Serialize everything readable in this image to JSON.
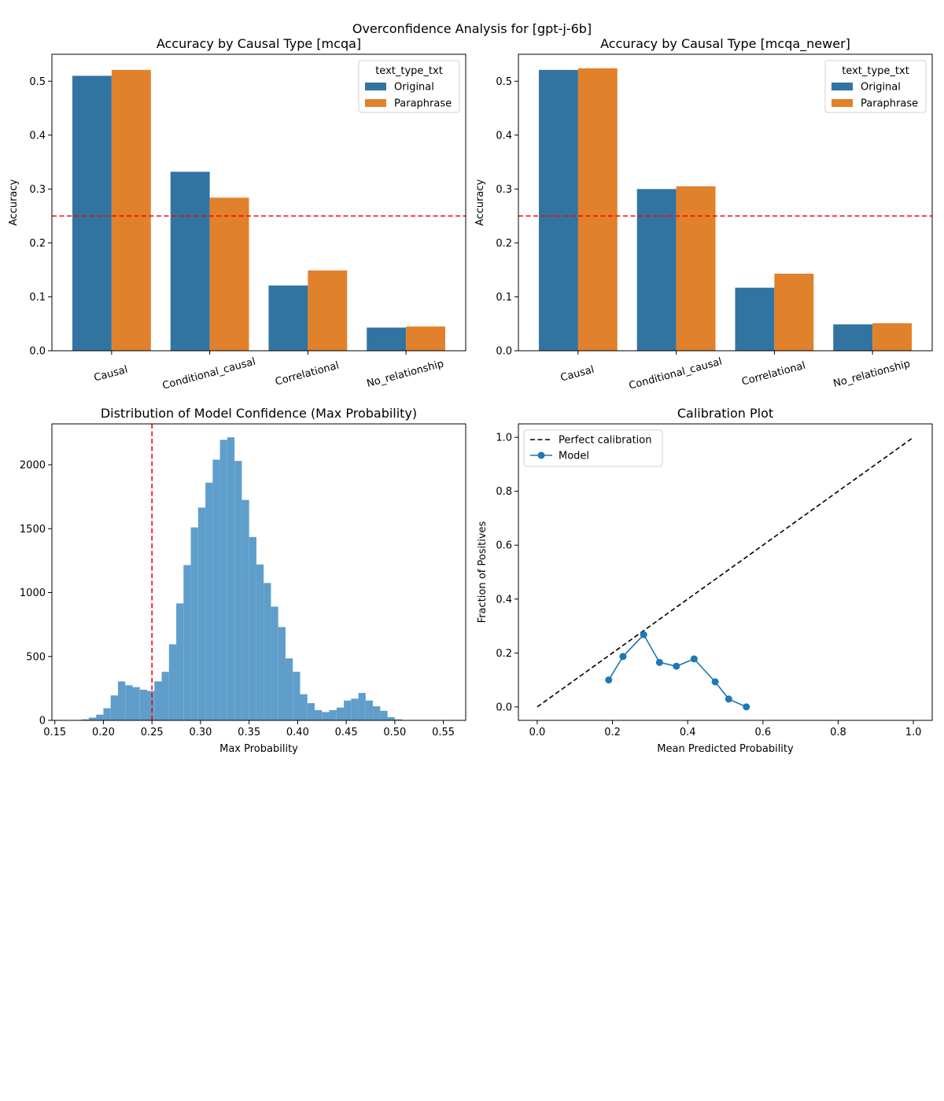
{
  "figure": {
    "suptitle": "Overconfidence Analysis for [gpt-j-6b]"
  },
  "colors": {
    "original": "#3274a1",
    "paraphrase": "#e1812c",
    "hist": "#5f9ecb",
    "model": "#1f77b4",
    "reference_line": "#ff0000",
    "perfect_line": "#000000"
  },
  "chart_data": [
    {
      "id": "acc_mcqa",
      "type": "bar",
      "title": "Accuracy by Causal Type [mcqa]",
      "xlabel": "",
      "ylabel": "Accuracy",
      "categories": [
        "Causal",
        "Conditional_causal",
        "Correlational",
        "No_relationship"
      ],
      "series": [
        {
          "name": "Original",
          "values": [
            0.51,
            0.332,
            0.121,
            0.043
          ]
        },
        {
          "name": "Paraphrase",
          "values": [
            0.521,
            0.284,
            0.149,
            0.045
          ]
        }
      ],
      "ylim": [
        0,
        0.55
      ],
      "yticks": [
        0.0,
        0.1,
        0.2,
        0.3,
        0.4,
        0.5
      ],
      "ytick_labels": [
        "0.0",
        "0.1",
        "0.2",
        "0.3",
        "0.4",
        "0.5"
      ],
      "reference_line": 0.25,
      "legend": {
        "title": "text_type_txt",
        "placement": "top-right"
      },
      "grid": false
    },
    {
      "id": "acc_mcqa_newer",
      "type": "bar",
      "title": "Accuracy by Causal Type [mcqa_newer]",
      "xlabel": "",
      "ylabel": "Accuracy",
      "categories": [
        "Causal",
        "Conditional_causal",
        "Correlational",
        "No_relationship"
      ],
      "series": [
        {
          "name": "Original",
          "values": [
            0.521,
            0.3,
            0.117,
            0.049
          ]
        },
        {
          "name": "Paraphrase",
          "values": [
            0.524,
            0.305,
            0.143,
            0.051
          ]
        }
      ],
      "ylim": [
        0,
        0.55
      ],
      "yticks": [
        0.0,
        0.1,
        0.2,
        0.3,
        0.4,
        0.5
      ],
      "ytick_labels": [
        "0.0",
        "0.1",
        "0.2",
        "0.3",
        "0.4",
        "0.5"
      ],
      "reference_line": 0.25,
      "legend": {
        "title": "text_type_txt",
        "placement": "top-right"
      },
      "grid": false
    },
    {
      "id": "confidence_hist",
      "type": "bar",
      "title": "Distribution of Model Confidence (Max Probability)",
      "xlabel": "Max Probability",
      "ylabel": "",
      "bin_start": 0.17,
      "bin_width": 0.0075,
      "counts": [
        3,
        8,
        22,
        45,
        95,
        195,
        305,
        275,
        260,
        240,
        230,
        305,
        380,
        595,
        915,
        1215,
        1510,
        1665,
        1860,
        2040,
        2195,
        2215,
        2030,
        1725,
        1435,
        1220,
        1075,
        890,
        730,
        485,
        380,
        205,
        135,
        80,
        65,
        80,
        100,
        155,
        170,
        215,
        155,
        110,
        75,
        25,
        8
      ],
      "xlim": [
        0.147,
        0.573
      ],
      "ylim": [
        0,
        2320
      ],
      "xticks": [
        0.15,
        0.2,
        0.25,
        0.3,
        0.35,
        0.4,
        0.45,
        0.5,
        0.55
      ],
      "xtick_labels": [
        "0.15",
        "0.20",
        "0.25",
        "0.30",
        "0.35",
        "0.40",
        "0.45",
        "0.50",
        "0.55"
      ],
      "yticks": [
        0,
        500,
        1000,
        1500,
        2000
      ],
      "ytick_labels": [
        "0",
        "500",
        "1000",
        "1500",
        "2000"
      ],
      "reference_line": 0.25,
      "grid": false
    },
    {
      "id": "calibration",
      "type": "line",
      "title": "Calibration Plot",
      "xlabel": "Mean Predicted Probability",
      "ylabel": "Fraction of Positives",
      "series": [
        {
          "name": "Perfect calibration",
          "x": [
            0.0,
            1.0
          ],
          "y": [
            0.0,
            1.0
          ]
        },
        {
          "name": "Model",
          "x": [
            0.19,
            0.228,
            0.283,
            0.325,
            0.37,
            0.417,
            0.473,
            0.509,
            0.556
          ],
          "y": [
            0.1,
            0.187,
            0.268,
            0.165,
            0.151,
            0.178,
            0.093,
            0.029,
            0.0
          ]
        }
      ],
      "xlim": [
        -0.05,
        1.05
      ],
      "ylim": [
        -0.05,
        1.05
      ],
      "xticks": [
        0.0,
        0.2,
        0.4,
        0.6,
        0.8,
        1.0
      ],
      "xtick_labels": [
        "0.0",
        "0.2",
        "0.4",
        "0.6",
        "0.8",
        "1.0"
      ],
      "yticks": [
        0.0,
        0.2,
        0.4,
        0.6,
        0.8,
        1.0
      ],
      "ytick_labels": [
        "0.0",
        "0.2",
        "0.4",
        "0.6",
        "0.8",
        "1.0"
      ],
      "legend": {
        "placement": "top-left"
      },
      "grid": false
    }
  ]
}
